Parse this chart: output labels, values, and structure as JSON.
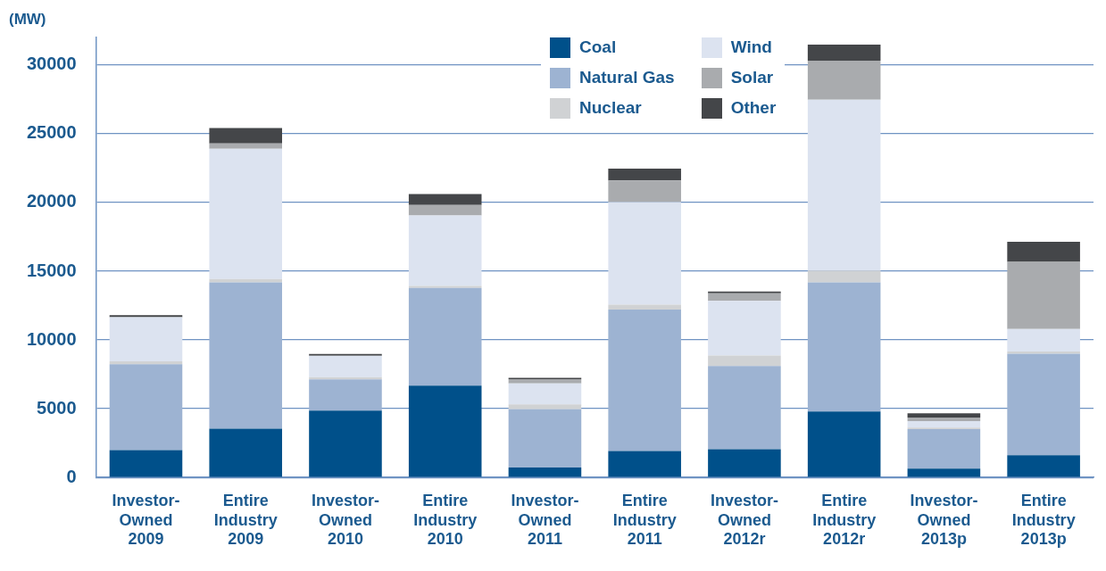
{
  "chart_data": {
    "type": "bar",
    "stacked": true,
    "ylabel": "(MW)",
    "categories": [
      "Investor-Owned 2009",
      "Entire Industry 2009",
      "Investor-Owned 2010",
      "Entire Industry 2010",
      "Investor-Owned 2011",
      "Entire Industry 2011",
      "Investor-Owned 2012r",
      "Entire Industry 2012r",
      "Investor-Owned 2013p",
      "Entire Industry 2013p"
    ],
    "series": [
      {
        "name": "Coal",
        "color": "#00508a",
        "values": [
          2000,
          3550,
          4870,
          6680,
          720,
          1930,
          2050,
          4790,
          640,
          1620
        ]
      },
      {
        "name": "Natural Gas",
        "color": "#9db3d2",
        "values": [
          6230,
          10640,
          2260,
          7110,
          4240,
          10280,
          6060,
          9400,
          2870,
          7380
        ]
      },
      {
        "name": "Nuclear",
        "color": "#d0d2d4",
        "values": [
          210,
          240,
          170,
          140,
          360,
          360,
          760,
          860,
          120,
          160
        ]
      },
      {
        "name": "Wind",
        "color": "#dce3f0",
        "values": [
          3220,
          9470,
          1550,
          5130,
          1520,
          7460,
          3980,
          12420,
          470,
          1640
        ]
      },
      {
        "name": "Solar",
        "color": "#a9abae",
        "values": [
          null,
          400,
          null,
          760,
          310,
          1580,
          550,
          2840,
          260,
          4890
        ]
      },
      {
        "name": "Other",
        "color": "#444649",
        "values": [
          140,
          1120,
          140,
          790,
          100,
          860,
          120,
          1170,
          310,
          1460
        ]
      }
    ],
    "ylim": [
      0,
      32000
    ],
    "yticks": [
      0,
      5000,
      10000,
      15000,
      20000,
      25000,
      30000
    ],
    "grid": "y",
    "legend": "top"
  }
}
